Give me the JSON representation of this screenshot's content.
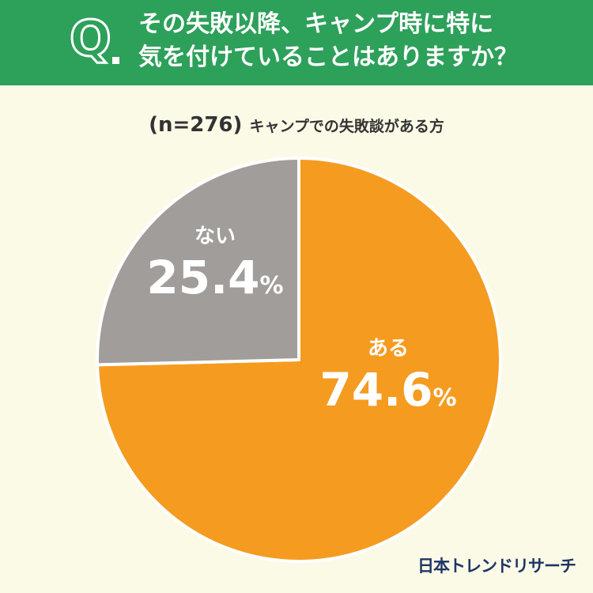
{
  "header": {
    "question_mark": "Q",
    "question_line1": "その失敗以降、キャンプ時に特に",
    "question_line2": "気を付けていることはありますか？"
  },
  "subtitle": {
    "sample": "(n=276)",
    "population": "キャンプでの失敗談がある方"
  },
  "colors": {
    "header": "#2da05a",
    "background": "#fbfae6",
    "aru": "#f59b20",
    "nai": "#a09d9b"
  },
  "chart_data": {
    "type": "pie",
    "title": "",
    "slices": [
      {
        "label": "ある",
        "value": 74.6,
        "value_text": "74.6",
        "color": "#f59b20"
      },
      {
        "label": "ない",
        "value": 25.4,
        "value_text": "25.4",
        "color": "#a09d9b"
      }
    ],
    "unit": "%",
    "start": "12 o'clock",
    "direction": "clockwise"
  },
  "logo": "日本トレンドリサーチ"
}
